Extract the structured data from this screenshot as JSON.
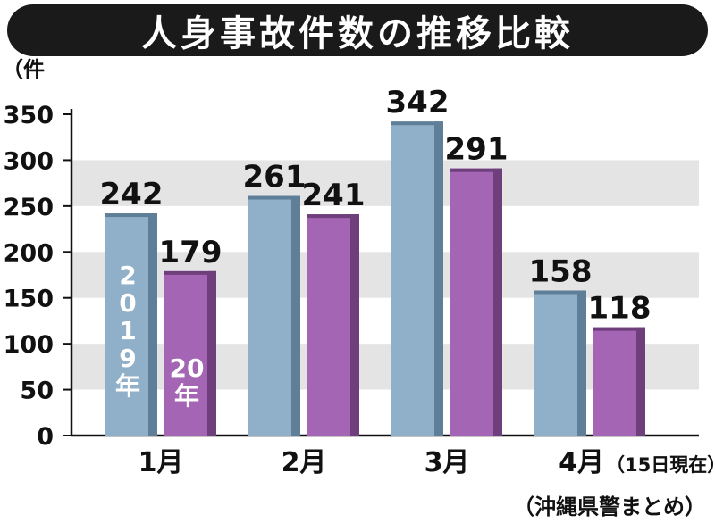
{
  "title": "人身事故件数の推移比較",
  "unit_label": "（件",
  "source": "（沖縄県警まとめ）",
  "colors": {
    "series_2019": "#8fb0c8",
    "series_2019_dark": "#5f7f98",
    "series_2020": "#a565b5",
    "series_2020_dark": "#6f3f7c",
    "band": "#e4e4e4",
    "axis": "#111111"
  },
  "chart_data": {
    "type": "bar",
    "title": "人身事故件数の推移比較",
    "ylabel": "（件",
    "ylim": [
      0,
      350
    ],
    "yticks": [
      0,
      50,
      100,
      150,
      200,
      250,
      300,
      350
    ],
    "categories": [
      "1月",
      "2月",
      "3月",
      "4月"
    ],
    "category_note": "（15日現在）",
    "series": [
      {
        "name": "2019年",
        "values": [
          242,
          261,
          342,
          158
        ]
      },
      {
        "name": "20年",
        "values": [
          179,
          241,
          291,
          118
        ]
      }
    ],
    "legend_placement": "inside-first-bars",
    "grid": "alternating-bands"
  }
}
